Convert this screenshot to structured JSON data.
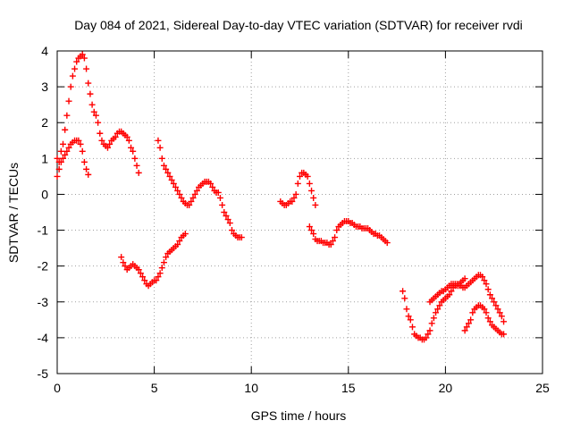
{
  "chart_data": {
    "type": "scatter",
    "title": "Day 084 of 2021, Sidereal Day-to-day VTEC variation (SDTVAR) for receiver rvdi",
    "xlabel": "GPS time / hours",
    "ylabel": "SDTVAR / TECUs",
    "xlim": [
      0,
      25
    ],
    "ylim": [
      -5,
      4
    ],
    "xticks": [
      0,
      5,
      10,
      15,
      20,
      25
    ],
    "yticks": [
      -5,
      -4,
      -3,
      -2,
      -1,
      0,
      1,
      2,
      3,
      4
    ],
    "grid": true,
    "marker": "plus",
    "color": "#ff0000",
    "series": [
      {
        "points": [
          [
            0.0,
            0.5
          ],
          [
            0.1,
            0.7
          ],
          [
            0.2,
            1.2
          ],
          [
            0.3,
            1.4
          ],
          [
            0.4,
            1.8
          ],
          [
            0.5,
            2.2
          ],
          [
            0.6,
            2.6
          ],
          [
            0.7,
            3.0
          ],
          [
            0.8,
            3.3
          ],
          [
            0.9,
            3.5
          ],
          [
            1.0,
            3.7
          ],
          [
            1.1,
            3.8
          ],
          [
            1.2,
            3.85
          ],
          [
            1.3,
            3.9
          ],
          [
            1.4,
            3.8
          ],
          [
            1.5,
            3.5
          ],
          [
            1.6,
            3.1
          ],
          [
            1.7,
            2.8
          ],
          [
            1.8,
            2.5
          ],
          [
            1.9,
            2.3
          ],
          [
            2.0,
            2.2
          ],
          [
            2.1,
            2.0
          ],
          [
            2.2,
            1.7
          ],
          [
            2.3,
            1.5
          ],
          [
            2.4,
            1.4
          ],
          [
            2.5,
            1.35
          ],
          [
            2.6,
            1.3
          ],
          [
            2.7,
            1.4
          ],
          [
            2.8,
            1.5
          ],
          [
            2.9,
            1.55
          ],
          [
            3.0,
            1.6
          ],
          [
            3.1,
            1.7
          ],
          [
            3.2,
            1.75
          ],
          [
            3.3,
            1.75
          ],
          [
            3.4,
            1.7
          ],
          [
            3.5,
            1.65
          ],
          [
            3.6,
            1.6
          ],
          [
            3.7,
            1.5
          ],
          [
            3.8,
            1.3
          ],
          [
            3.9,
            1.2
          ],
          [
            4.0,
            1.0
          ],
          [
            4.1,
            0.8
          ],
          [
            4.2,
            0.6
          ]
        ]
      },
      {
        "points": [
          [
            0.0,
            1.0
          ],
          [
            0.1,
            0.9
          ],
          [
            0.2,
            0.9
          ],
          [
            0.3,
            1.0
          ],
          [
            0.4,
            1.1
          ],
          [
            0.5,
            1.2
          ],
          [
            0.6,
            1.3
          ],
          [
            0.7,
            1.4
          ],
          [
            0.8,
            1.45
          ],
          [
            0.9,
            1.5
          ],
          [
            1.0,
            1.5
          ],
          [
            1.1,
            1.5
          ],
          [
            1.2,
            1.4
          ],
          [
            1.3,
            1.2
          ],
          [
            1.4,
            0.9
          ],
          [
            1.5,
            0.7
          ],
          [
            1.6,
            0.55
          ]
        ]
      },
      {
        "points": [
          [
            5.2,
            1.5
          ],
          [
            5.3,
            1.3
          ],
          [
            5.4,
            1.0
          ],
          [
            5.5,
            0.8
          ],
          [
            5.6,
            0.7
          ],
          [
            5.7,
            0.6
          ],
          [
            5.8,
            0.5
          ],
          [
            5.9,
            0.4
          ],
          [
            6.0,
            0.3
          ],
          [
            6.1,
            0.2
          ],
          [
            6.2,
            0.1
          ],
          [
            6.3,
            0.0
          ],
          [
            6.4,
            -0.1
          ],
          [
            6.5,
            -0.2
          ],
          [
            6.6,
            -0.25
          ],
          [
            6.7,
            -0.3
          ],
          [
            6.8,
            -0.3
          ],
          [
            6.9,
            -0.2
          ],
          [
            7.0,
            -0.1
          ],
          [
            7.1,
            0.0
          ],
          [
            7.2,
            0.1
          ],
          [
            7.3,
            0.2
          ],
          [
            7.4,
            0.25
          ],
          [
            7.5,
            0.3
          ],
          [
            7.6,
            0.35
          ],
          [
            7.7,
            0.35
          ],
          [
            7.8,
            0.35
          ],
          [
            7.9,
            0.3
          ],
          [
            8.0,
            0.2
          ],
          [
            8.1,
            0.1
          ],
          [
            8.2,
            0.05
          ],
          [
            8.3,
            0.05
          ],
          [
            8.4,
            -0.1
          ],
          [
            8.5,
            -0.3
          ],
          [
            8.6,
            -0.5
          ],
          [
            8.7,
            -0.6
          ],
          [
            8.8,
            -0.7
          ],
          [
            8.9,
            -0.8
          ],
          [
            9.0,
            -1.0
          ],
          [
            9.1,
            -1.1
          ],
          [
            9.2,
            -1.15
          ],
          [
            9.3,
            -1.2
          ],
          [
            9.4,
            -1.2
          ],
          [
            9.5,
            -1.2
          ]
        ]
      },
      {
        "points": [
          [
            3.3,
            -1.75
          ],
          [
            3.4,
            -1.9
          ],
          [
            3.5,
            -2.0
          ],
          [
            3.6,
            -2.1
          ],
          [
            3.7,
            -2.05
          ],
          [
            3.8,
            -2.0
          ],
          [
            3.9,
            -1.95
          ],
          [
            4.0,
            -2.0
          ],
          [
            4.1,
            -2.05
          ],
          [
            4.2,
            -2.1
          ],
          [
            4.3,
            -2.2
          ],
          [
            4.4,
            -2.3
          ],
          [
            4.5,
            -2.4
          ],
          [
            4.6,
            -2.5
          ],
          [
            4.7,
            -2.55
          ],
          [
            4.8,
            -2.5
          ],
          [
            4.9,
            -2.45
          ],
          [
            5.0,
            -2.4
          ],
          [
            5.1,
            -2.4
          ],
          [
            5.2,
            -2.3
          ],
          [
            5.3,
            -2.2
          ],
          [
            5.4,
            -2.05
          ],
          [
            5.5,
            -1.9
          ],
          [
            5.6,
            -1.75
          ],
          [
            5.7,
            -1.65
          ],
          [
            5.8,
            -1.6
          ],
          [
            5.9,
            -1.55
          ],
          [
            6.0,
            -1.5
          ],
          [
            6.1,
            -1.45
          ],
          [
            6.2,
            -1.4
          ],
          [
            6.3,
            -1.3
          ],
          [
            6.4,
            -1.2
          ],
          [
            6.5,
            -1.15
          ],
          [
            6.6,
            -1.1
          ]
        ]
      },
      {
        "points": [
          [
            11.5,
            -0.2
          ],
          [
            11.6,
            -0.25
          ],
          [
            11.7,
            -0.3
          ],
          [
            11.8,
            -0.3
          ],
          [
            11.9,
            -0.25
          ],
          [
            12.0,
            -0.2
          ],
          [
            12.1,
            -0.2
          ],
          [
            12.2,
            -0.1
          ],
          [
            12.3,
            0.0
          ],
          [
            12.4,
            0.3
          ],
          [
            12.5,
            0.5
          ],
          [
            12.6,
            0.6
          ],
          [
            12.7,
            0.6
          ],
          [
            12.8,
            0.55
          ],
          [
            12.9,
            0.5
          ],
          [
            13.0,
            0.3
          ],
          [
            13.1,
            0.1
          ],
          [
            13.2,
            -0.1
          ],
          [
            13.3,
            -0.3
          ]
        ]
      },
      {
        "points": [
          [
            13.0,
            -0.9
          ],
          [
            13.1,
            -1.0
          ],
          [
            13.2,
            -1.1
          ],
          [
            13.3,
            -1.25
          ],
          [
            13.4,
            -1.3
          ],
          [
            13.5,
            -1.3
          ],
          [
            13.6,
            -1.3
          ],
          [
            13.7,
            -1.35
          ],
          [
            13.8,
            -1.35
          ],
          [
            13.9,
            -1.35
          ],
          [
            14.0,
            -1.4
          ],
          [
            14.1,
            -1.4
          ],
          [
            14.2,
            -1.3
          ],
          [
            14.3,
            -1.2
          ],
          [
            14.4,
            -1.0
          ],
          [
            14.5,
            -0.9
          ],
          [
            14.6,
            -0.85
          ],
          [
            14.7,
            -0.8
          ],
          [
            14.8,
            -0.75
          ],
          [
            14.9,
            -0.75
          ],
          [
            15.0,
            -0.75
          ],
          [
            15.1,
            -0.8
          ],
          [
            15.2,
            -0.8
          ],
          [
            15.3,
            -0.85
          ],
          [
            15.4,
            -0.9
          ],
          [
            15.5,
            -0.9
          ],
          [
            15.6,
            -0.9
          ],
          [
            15.7,
            -0.95
          ],
          [
            15.8,
            -0.95
          ],
          [
            15.9,
            -0.95
          ],
          [
            16.0,
            -0.95
          ],
          [
            16.1,
            -1.0
          ],
          [
            16.2,
            -1.05
          ],
          [
            16.3,
            -1.1
          ],
          [
            16.4,
            -1.1
          ],
          [
            16.5,
            -1.15
          ],
          [
            16.6,
            -1.15
          ],
          [
            16.7,
            -1.2
          ],
          [
            16.8,
            -1.25
          ],
          [
            16.9,
            -1.3
          ],
          [
            17.0,
            -1.35
          ]
        ]
      },
      {
        "points": [
          [
            17.8,
            -2.7
          ],
          [
            17.9,
            -2.9
          ],
          [
            18.0,
            -3.2
          ],
          [
            18.1,
            -3.4
          ],
          [
            18.2,
            -3.5
          ],
          [
            18.3,
            -3.7
          ],
          [
            18.4,
            -3.9
          ],
          [
            18.5,
            -3.95
          ],
          [
            18.6,
            -4.0
          ],
          [
            18.7,
            -4.0
          ],
          [
            18.8,
            -4.05
          ],
          [
            18.9,
            -4.05
          ],
          [
            19.0,
            -4.0
          ],
          [
            19.1,
            -3.9
          ],
          [
            19.2,
            -3.8
          ],
          [
            19.3,
            -3.6
          ],
          [
            19.4,
            -3.45
          ],
          [
            19.5,
            -3.3
          ],
          [
            19.6,
            -3.2
          ],
          [
            19.7,
            -3.1
          ],
          [
            19.8,
            -3.0
          ],
          [
            19.9,
            -2.95
          ],
          [
            20.0,
            -2.9
          ],
          [
            20.1,
            -2.85
          ],
          [
            20.2,
            -2.8
          ],
          [
            20.3,
            -2.7
          ],
          [
            20.4,
            -2.6
          ],
          [
            20.5,
            -2.55
          ],
          [
            20.6,
            -2.5
          ],
          [
            20.7,
            -2.5
          ],
          [
            20.8,
            -2.45
          ],
          [
            20.9,
            -2.4
          ],
          [
            21.0,
            -2.35
          ]
        ]
      },
      {
        "points": [
          [
            19.2,
            -3.0
          ],
          [
            19.3,
            -2.95
          ],
          [
            19.4,
            -2.9
          ],
          [
            19.5,
            -2.85
          ],
          [
            19.6,
            -2.8
          ],
          [
            19.7,
            -2.75
          ],
          [
            19.8,
            -2.7
          ],
          [
            19.9,
            -2.7
          ],
          [
            20.0,
            -2.65
          ],
          [
            20.1,
            -2.6
          ],
          [
            20.2,
            -2.55
          ],
          [
            20.3,
            -2.5
          ],
          [
            20.4,
            -2.5
          ],
          [
            20.5,
            -2.5
          ],
          [
            20.6,
            -2.55
          ],
          [
            20.7,
            -2.55
          ],
          [
            20.8,
            -2.55
          ],
          [
            20.9,
            -2.6
          ],
          [
            21.0,
            -2.6
          ],
          [
            21.1,
            -2.55
          ],
          [
            21.2,
            -2.5
          ],
          [
            21.3,
            -2.45
          ],
          [
            21.4,
            -2.4
          ],
          [
            21.5,
            -2.35
          ],
          [
            21.6,
            -2.3
          ],
          [
            21.7,
            -2.25
          ],
          [
            21.8,
            -2.25
          ],
          [
            21.9,
            -2.3
          ],
          [
            22.0,
            -2.4
          ],
          [
            22.1,
            -2.5
          ],
          [
            22.2,
            -2.65
          ],
          [
            22.3,
            -2.8
          ],
          [
            22.4,
            -2.9
          ],
          [
            22.5,
            -3.0
          ],
          [
            22.6,
            -3.1
          ],
          [
            22.7,
            -3.2
          ],
          [
            22.8,
            -3.3
          ],
          [
            22.9,
            -3.4
          ],
          [
            23.0,
            -3.55
          ]
        ]
      },
      {
        "points": [
          [
            21.0,
            -3.8
          ],
          [
            21.1,
            -3.7
          ],
          [
            21.2,
            -3.6
          ],
          [
            21.3,
            -3.5
          ],
          [
            21.4,
            -3.3
          ],
          [
            21.5,
            -3.2
          ],
          [
            21.6,
            -3.15
          ],
          [
            21.7,
            -3.1
          ],
          [
            21.8,
            -3.1
          ],
          [
            21.9,
            -3.15
          ],
          [
            22.0,
            -3.2
          ],
          [
            22.1,
            -3.3
          ],
          [
            22.2,
            -3.45
          ],
          [
            22.3,
            -3.55
          ],
          [
            22.4,
            -3.65
          ],
          [
            22.5,
            -3.7
          ],
          [
            22.6,
            -3.75
          ],
          [
            22.7,
            -3.8
          ],
          [
            22.8,
            -3.85
          ],
          [
            22.9,
            -3.9
          ],
          [
            23.0,
            -3.9
          ]
        ]
      }
    ]
  }
}
